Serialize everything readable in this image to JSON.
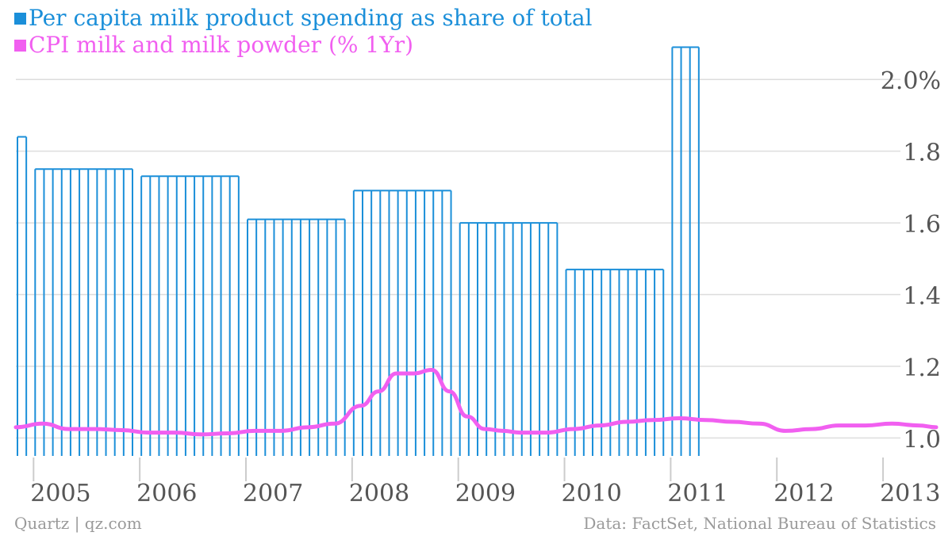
{
  "colors": {
    "bars": "#1b8fd9",
    "line": "#f15ff0",
    "grid": "#dddddd",
    "axis_text": "#555555",
    "footer": "#9a9a9a"
  },
  "legend": [
    {
      "label": "Per capita milk product spending as share of total",
      "color": "#1b8fd9"
    },
    {
      "label": "CPI milk and milk powder (% 1Yr)",
      "color": "#f15ff0"
    }
  ],
  "footer": {
    "left": "Quartz | qz.com",
    "right": "Data: FactSet, National Bureau of Statistics"
  },
  "chart_data": {
    "type": "bar+line",
    "grid": true,
    "y_axis_side": "right",
    "ylim": [
      0.95,
      2.1
    ],
    "yticks": [
      1.0,
      1.2,
      1.4,
      1.6,
      1.8,
      2.0
    ],
    "yticklabels": [
      "1.0",
      "1.2",
      "1.4",
      "1.6",
      "1.8",
      "2.0%"
    ],
    "xlim": [
      "2004-11",
      "2013-07"
    ],
    "xticks": [
      "2005",
      "2006",
      "2007",
      "2008",
      "2009",
      "2010",
      "2011",
      "2012",
      "2013"
    ],
    "series": [
      {
        "name": "Per capita milk product spending as share of total",
        "type": "bar",
        "segments": [
          {
            "start": "2004-11",
            "months": 2,
            "value": 1.84
          },
          {
            "start": "2005-01",
            "months": 12,
            "value": 1.75
          },
          {
            "start": "2006-01",
            "months": 12,
            "value": 1.73
          },
          {
            "start": "2007-01",
            "months": 12,
            "value": 1.61
          },
          {
            "start": "2008-01",
            "months": 12,
            "value": 1.69
          },
          {
            "start": "2009-01",
            "months": 12,
            "value": 1.6
          },
          {
            "start": "2010-01",
            "months": 12,
            "value": 1.47
          },
          {
            "start": "2011-01",
            "months": 4,
            "value": 2.09
          }
        ]
      },
      {
        "name": "CPI milk and milk powder (% 1Yr)",
        "type": "line",
        "points": [
          [
            "2004-11",
            1.03
          ],
          [
            "2005-02",
            1.04
          ],
          [
            "2005-05",
            1.025
          ],
          [
            "2005-08",
            1.025
          ],
          [
            "2005-11",
            1.022
          ],
          [
            "2006-02",
            1.015
          ],
          [
            "2006-05",
            1.015
          ],
          [
            "2006-08",
            1.01
          ],
          [
            "2006-11",
            1.013
          ],
          [
            "2007-02",
            1.02
          ],
          [
            "2007-05",
            1.02
          ],
          [
            "2007-08",
            1.03
          ],
          [
            "2007-11",
            1.04
          ],
          [
            "2008-02",
            1.09
          ],
          [
            "2008-04",
            1.13
          ],
          [
            "2008-06",
            1.18
          ],
          [
            "2008-08",
            1.18
          ],
          [
            "2008-10",
            1.19
          ],
          [
            "2008-12",
            1.13
          ],
          [
            "2009-02",
            1.06
          ],
          [
            "2009-04",
            1.025
          ],
          [
            "2009-06",
            1.02
          ],
          [
            "2009-08",
            1.015
          ],
          [
            "2009-11",
            1.015
          ],
          [
            "2010-02",
            1.025
          ],
          [
            "2010-05",
            1.035
          ],
          [
            "2010-08",
            1.045
          ],
          [
            "2010-11",
            1.05
          ],
          [
            "2011-02",
            1.055
          ],
          [
            "2011-05",
            1.05
          ],
          [
            "2011-08",
            1.045
          ],
          [
            "2011-11",
            1.04
          ],
          [
            "2012-02",
            1.02
          ],
          [
            "2012-05",
            1.025
          ],
          [
            "2012-08",
            1.035
          ],
          [
            "2012-11",
            1.035
          ],
          [
            "2013-02",
            1.04
          ],
          [
            "2013-05",
            1.035
          ],
          [
            "2013-07",
            1.03
          ]
        ]
      }
    ]
  }
}
